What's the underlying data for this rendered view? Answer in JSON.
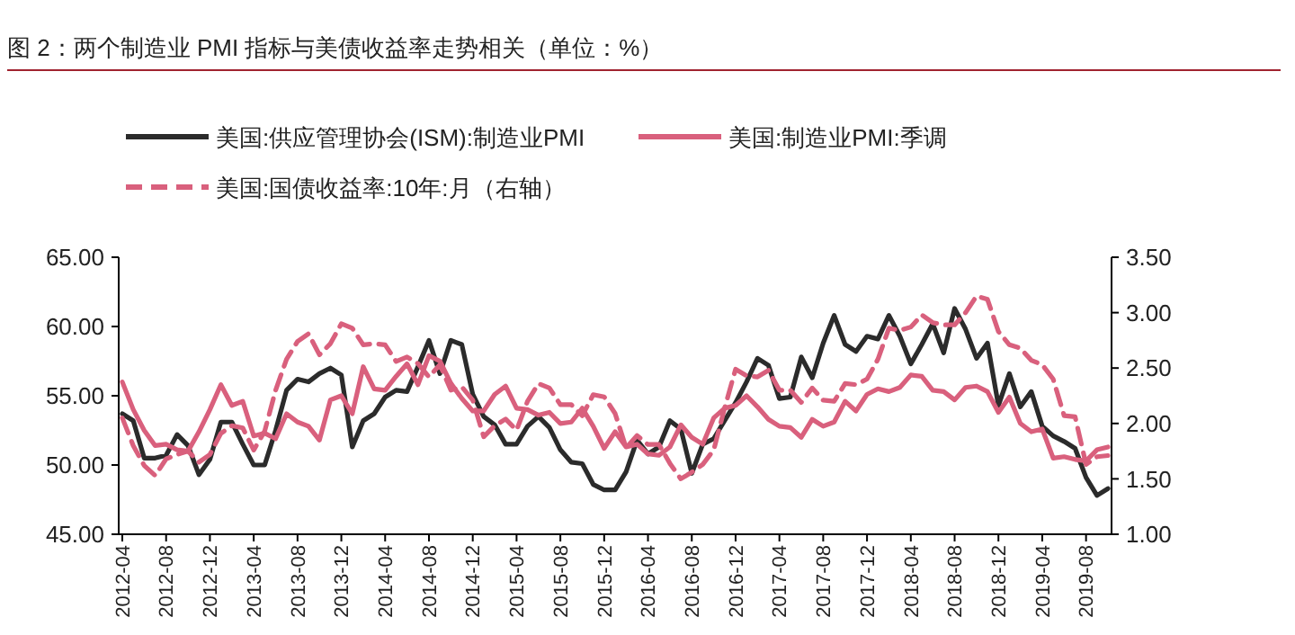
{
  "chart_data": {
    "type": "line",
    "title": "图 2：两个制造业 PMI 指标与美债收益率走势相关（单位：%）",
    "categories": [
      "2012-04",
      null,
      null,
      null,
      "2012-08",
      null,
      null,
      null,
      "2012-12",
      null,
      null,
      null,
      "2013-04",
      null,
      null,
      null,
      "2013-08",
      null,
      null,
      null,
      "2013-12",
      null,
      null,
      null,
      "2014-04",
      null,
      null,
      null,
      "2014-08",
      null,
      null,
      null,
      "2014-12",
      null,
      null,
      null,
      "2015-04",
      null,
      null,
      null,
      "2015-08",
      null,
      null,
      null,
      "2015-12",
      null,
      null,
      null,
      "2016-04",
      null,
      null,
      null,
      "2016-08",
      null,
      null,
      null,
      "2016-12",
      null,
      null,
      null,
      "2017-04",
      null,
      null,
      null,
      "2017-08",
      null,
      null,
      null,
      "2017-12",
      null,
      null,
      null,
      "2018-04",
      null,
      null,
      null,
      "2018-08",
      null,
      null,
      null,
      "2018-12",
      null,
      null,
      null,
      "2019-04",
      null,
      null,
      null,
      "2019-08",
      null,
      null
    ],
    "series": [
      {
        "name": "美国:供应管理协会(ISM):制造业PMI",
        "color": "#2b2b2b",
        "line_style": "solid",
        "values": [
          53.7,
          53.2,
          50.5,
          50.5,
          50.7,
          52.2,
          51.4,
          49.3,
          50.4,
          53.1,
          53.1,
          51.5,
          50.0,
          50.0,
          52.5,
          55.4,
          56.2,
          56.0,
          56.6,
          57.0,
          56.5,
          51.3,
          53.2,
          53.7,
          54.9,
          55.4,
          55.3,
          57.1,
          59.0,
          56.6,
          59.0,
          58.7,
          55.1,
          53.5,
          52.9,
          51.5,
          51.5,
          52.8,
          53.5,
          52.7,
          51.1,
          50.2,
          50.1,
          48.6,
          48.2,
          48.2,
          49.5,
          51.8,
          50.8,
          51.3,
          53.2,
          52.6,
          49.4,
          51.5,
          51.9,
          53.2,
          54.5,
          56.0,
          57.7,
          57.2,
          54.8,
          54.9,
          57.8,
          56.3,
          58.8,
          60.8,
          58.7,
          58.2,
          59.3,
          59.1,
          60.8,
          59.3,
          57.3,
          58.7,
          60.2,
          58.1,
          61.3,
          59.8,
          57.7,
          58.8,
          54.3,
          56.6,
          54.2,
          55.3,
          52.8,
          52.1,
          51.7,
          51.2,
          49.1,
          47.8,
          48.3
        ]
      },
      {
        "name": "美国:制造业PMI:季调",
        "color": "#d9607d",
        "line_style": "solid",
        "values": [
          56.0,
          54.0,
          52.5,
          51.4,
          51.5,
          51.1,
          51.0,
          52.4,
          54.0,
          55.8,
          54.3,
          54.6,
          52.1,
          52.3,
          51.9,
          53.7,
          53.1,
          52.8,
          51.8,
          54.7,
          55.0,
          53.7,
          57.1,
          55.5,
          55.4,
          56.4,
          57.3,
          55.8,
          57.9,
          57.5,
          55.9,
          54.8,
          53.9,
          53.9,
          55.1,
          55.7,
          54.1,
          54.0,
          53.6,
          53.8,
          53.0,
          53.1,
          54.1,
          52.8,
          51.2,
          52.4,
          51.3,
          51.5,
          50.8,
          50.7,
          51.3,
          52.9,
          52.0,
          51.5,
          53.4,
          54.1,
          54.3,
          55.0,
          54.2,
          53.3,
          52.8,
          52.7,
          52.0,
          53.3,
          52.8,
          53.1,
          54.6,
          53.9,
          55.1,
          55.5,
          55.3,
          55.6,
          56.5,
          56.4,
          55.4,
          55.3,
          54.7,
          55.6,
          55.7,
          55.3,
          53.8,
          54.9,
          53.0,
          52.4,
          52.6,
          50.5,
          50.6,
          50.4,
          50.3,
          51.1,
          51.3
        ]
      },
      {
        "name": "美国:国债收益率:10年:月（右轴）",
        "color": "#d9607d",
        "line_style": "dashed",
        "axis": "y2",
        "values": [
          2.05,
          1.8,
          1.62,
          1.53,
          1.68,
          1.72,
          1.75,
          1.65,
          1.72,
          1.91,
          1.98,
          1.96,
          1.76,
          1.93,
          2.3,
          2.58,
          2.74,
          2.81,
          2.62,
          2.72,
          2.9,
          2.86,
          2.71,
          2.72,
          2.71,
          2.56,
          2.6,
          2.54,
          2.42,
          2.53,
          2.3,
          2.33,
          2.21,
          1.88,
          1.98,
          2.04,
          1.94,
          2.2,
          2.36,
          2.32,
          2.17,
          2.17,
          2.07,
          2.26,
          2.24,
          2.09,
          1.78,
          1.89,
          1.81,
          1.81,
          1.64,
          1.5,
          1.56,
          1.63,
          1.76,
          2.14,
          2.49,
          2.43,
          2.42,
          2.48,
          2.3,
          2.3,
          2.19,
          2.32,
          2.21,
          2.2,
          2.36,
          2.35,
          2.4,
          2.58,
          2.86,
          2.84,
          2.87,
          2.98,
          2.91,
          2.89,
          2.89,
          3.0,
          3.15,
          3.12,
          2.83,
          2.71,
          2.68,
          2.57,
          2.53,
          2.4,
          2.07,
          2.06,
          1.63,
          1.7,
          1.71
        ]
      }
    ],
    "ylim": [
      45,
      65
    ],
    "yticks": [
      {
        "value": 45,
        "label": "45.00"
      },
      {
        "value": 50,
        "label": "50.00"
      },
      {
        "value": 55,
        "label": "55.00"
      },
      {
        "value": 60,
        "label": "60.00"
      },
      {
        "value": 65,
        "label": "65.00"
      }
    ],
    "y2lim": [
      1,
      3.5
    ],
    "y2ticks": [
      {
        "value": 1,
        "label": "1.00"
      },
      {
        "value": 1.5,
        "label": "1.50"
      },
      {
        "value": 2,
        "label": "2.00"
      },
      {
        "value": 2.5,
        "label": "2.50"
      },
      {
        "value": 3,
        "label": "3.00"
      },
      {
        "value": 3.5,
        "label": "3.50"
      }
    ],
    "legend": "top",
    "grid": false,
    "marker": "none"
  }
}
